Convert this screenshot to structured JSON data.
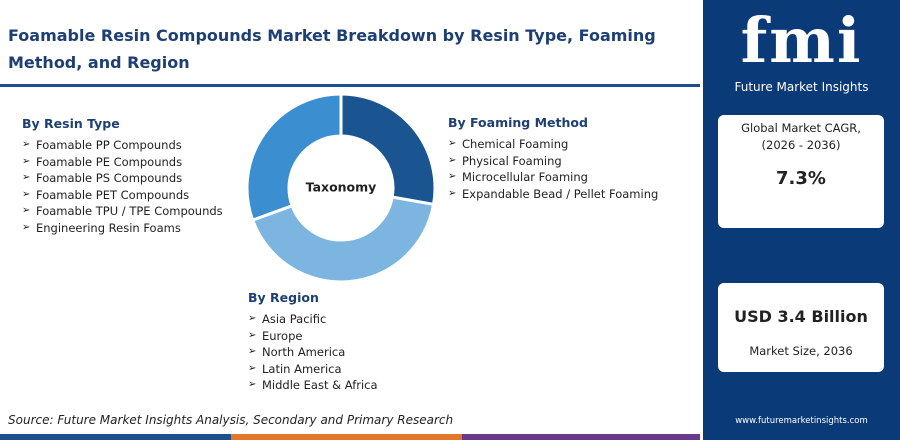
{
  "header": {
    "title": "Foamable Resin Compounds Market Breakdown by Resin Type, Foaming Method, and Region"
  },
  "taxonomy": {
    "center": "Taxonomy",
    "groups": [
      {
        "title": "By Resin Type",
        "items": [
          "Foamable PP Compounds",
          "Foamable PE Compounds",
          "Foamable PS Compounds",
          "Foamable PET Compounds",
          "Foamable TPU / TPE Compounds",
          "Engineering Resin Foams"
        ]
      },
      {
        "title": "By Foaming Method",
        "items": [
          "Chemical Foaming",
          "Physical Foaming",
          "Microcellular Foaming",
          "Expandable Bead / Pellet Foaming"
        ]
      },
      {
        "title": "By Region",
        "items": [
          "Asia Pacific",
          "Europe",
          "North America",
          "Latin America",
          "Middle East & Africa"
        ]
      }
    ]
  },
  "source": "Source: Future Market Insights Analysis, Secondary and Primary Research",
  "sidebar": {
    "logo": "fmi",
    "logo_subtitle": "Future Market Insights",
    "cagr": {
      "label": [
        "Global Market CAGR,",
        "(2026 - 2036)"
      ],
      "value": "7.3%"
    },
    "market_size": {
      "value": "USD 3.4 Billion",
      "label": "Market Size, 2036"
    },
    "website": "www.futuremarketinsights.com"
  }
}
